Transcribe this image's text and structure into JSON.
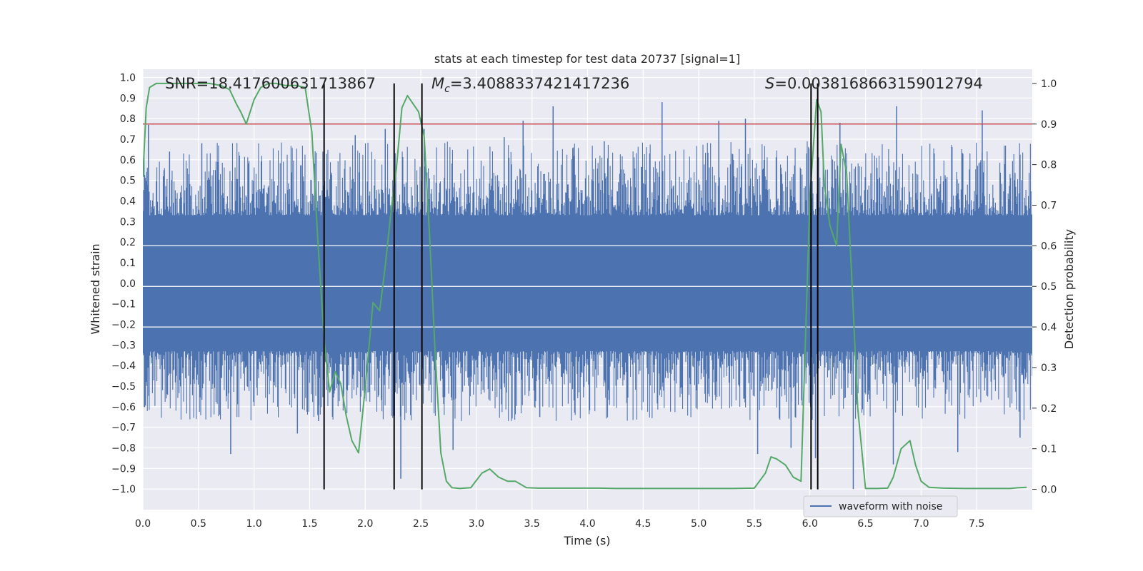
{
  "chart_data": {
    "type": "line",
    "title": "stats at each timestep for test data 20737 [signal=1]",
    "xlabel": "Time (s)",
    "ylabel": "Whitened strain",
    "ylabel_right": "Detection probability",
    "xlim": [
      0.0,
      8.0
    ],
    "ylim": [
      -1.1,
      1.04
    ],
    "ylim_right": [
      -0.05,
      1.035
    ],
    "x_ticks": [
      "0.0",
      "0.5",
      "1.0",
      "1.5",
      "2.0",
      "2.5",
      "3.0",
      "3.5",
      "4.0",
      "4.5",
      "5.0",
      "5.5",
      "6.0",
      "6.5",
      "7.0",
      "7.5"
    ],
    "y_ticks": [
      "1.0",
      "0.9",
      "0.8",
      "0.7",
      "0.6",
      "0.5",
      "0.4",
      "0.3",
      "0.2",
      "0.1",
      "0.0",
      "−0.1",
      "−0.2",
      "−0.3",
      "−0.4",
      "−0.5",
      "−0.6",
      "−0.7",
      "−0.8",
      "−0.9",
      "−1.0"
    ],
    "y2_ticks": [
      "1.0",
      "0.9",
      "0.8",
      "0.7",
      "0.6",
      "0.5",
      "0.4",
      "0.3",
      "0.2",
      "0.1",
      "0.0"
    ],
    "annotations": {
      "snr": "SNR=18.417600631713867",
      "mc_symbol": "M",
      "mc_sub": "c",
      "mc_value": "=3.4088337421417236",
      "s_symbol": "S",
      "s_value": "=0.003816866315901279​4"
    },
    "legend": {
      "label": "waveform with noise",
      "position": "lower-right"
    },
    "threshold": 0.9,
    "vlines": [
      1.63,
      2.26,
      2.51,
      6.01,
      6.07
    ],
    "waveform": {
      "name": "waveform with noise",
      "color": "#4c72b0",
      "samples": 1400,
      "seed": 20737,
      "core_amplitude": 0.33,
      "spikes": [
        {
          "x": 0.05,
          "y": 0.77
        },
        {
          "x": 0.24,
          "y": 0.64
        },
        {
          "x": 0.53,
          "y": 0.68
        },
        {
          "x": 0.79,
          "y": -0.83
        },
        {
          "x": 1.39,
          "y": -0.73
        },
        {
          "x": 1.58,
          "y": -0.67
        },
        {
          "x": 1.91,
          "y": 0.72
        },
        {
          "x": 2.18,
          "y": 0.75
        },
        {
          "x": 2.32,
          "y": -0.95
        },
        {
          "x": 2.53,
          "y": 0.75
        },
        {
          "x": 2.79,
          "y": -0.81
        },
        {
          "x": 3.25,
          "y": 0.71
        },
        {
          "x": 3.42,
          "y": 0.79
        },
        {
          "x": 3.57,
          "y": -0.65
        },
        {
          "x": 3.69,
          "y": 0.86
        },
        {
          "x": 4.15,
          "y": 0.69
        },
        {
          "x": 4.67,
          "y": 0.88
        },
        {
          "x": 5.18,
          "y": 0.79
        },
        {
          "x": 5.42,
          "y": 0.8
        },
        {
          "x": 5.53,
          "y": -0.83
        },
        {
          "x": 5.83,
          "y": -0.8
        },
        {
          "x": 6.05,
          "y": -0.85
        },
        {
          "x": 6.27,
          "y": 0.78
        },
        {
          "x": 6.39,
          "y": -1.0
        },
        {
          "x": 6.78,
          "y": 0.86
        },
        {
          "x": 6.75,
          "y": -0.88
        },
        {
          "x": 7.33,
          "y": -0.82
        },
        {
          "x": 7.55,
          "y": 0.84
        },
        {
          "x": 7.89,
          "y": -0.75
        }
      ]
    },
    "detection_probability": {
      "color": "#55a868",
      "x": [
        0.0,
        0.03,
        0.06,
        0.12,
        0.2,
        0.3,
        0.4,
        0.5,
        0.6,
        0.7,
        0.78,
        0.84,
        0.88,
        0.93,
        1.0,
        1.06,
        1.13,
        1.2,
        1.28,
        1.38,
        1.46,
        1.52,
        1.57,
        1.63,
        1.68,
        1.73,
        1.78,
        1.83,
        1.88,
        1.94,
        2.0,
        2.07,
        2.13,
        2.18,
        2.23,
        2.28,
        2.33,
        2.38,
        2.43,
        2.48,
        2.53,
        2.58,
        2.63,
        2.68,
        2.73,
        2.78,
        2.85,
        2.95,
        3.05,
        3.12,
        3.2,
        3.28,
        3.35,
        3.45,
        3.55,
        3.7,
        3.85,
        4.0,
        4.1,
        4.25,
        4.5,
        4.8,
        5.0,
        5.3,
        5.5,
        5.6,
        5.65,
        5.7,
        5.78,
        5.85,
        5.92,
        6.0,
        6.06,
        6.1,
        6.13,
        6.18,
        6.24,
        6.28,
        6.33,
        6.38,
        6.43,
        6.5,
        6.6,
        6.7,
        6.75,
        6.82,
        6.9,
        6.95,
        7.0,
        7.07,
        7.2,
        7.4,
        7.6,
        7.8,
        7.88,
        7.95
      ],
      "values": [
        0.77,
        0.94,
        0.99,
        1.0,
        1.0,
        1.0,
        1.0,
        1.0,
        1.0,
        0.995,
        0.985,
        0.95,
        0.93,
        0.9,
        0.96,
        0.99,
        1.0,
        1.0,
        0.995,
        0.995,
        0.99,
        0.88,
        0.63,
        0.37,
        0.24,
        0.29,
        0.26,
        0.18,
        0.12,
        0.09,
        0.25,
        0.46,
        0.44,
        0.55,
        0.68,
        0.79,
        0.94,
        0.97,
        0.95,
        0.93,
        0.87,
        0.62,
        0.33,
        0.09,
        0.02,
        0.004,
        0.002,
        0.004,
        0.04,
        0.05,
        0.03,
        0.02,
        0.02,
        0.004,
        0.003,
        0.003,
        0.003,
        0.003,
        0.003,
        0.002,
        0.002,
        0.002,
        0.002,
        0.002,
        0.003,
        0.04,
        0.08,
        0.075,
        0.06,
        0.03,
        0.02,
        0.72,
        0.96,
        0.93,
        0.75,
        0.65,
        0.6,
        0.85,
        0.78,
        0.5,
        0.2,
        0.002,
        0.002,
        0.003,
        0.03,
        0.1,
        0.12,
        0.06,
        0.02,
        0.005,
        0.003,
        0.002,
        0.002,
        0.002,
        0.004,
        0.005
      ]
    }
  }
}
